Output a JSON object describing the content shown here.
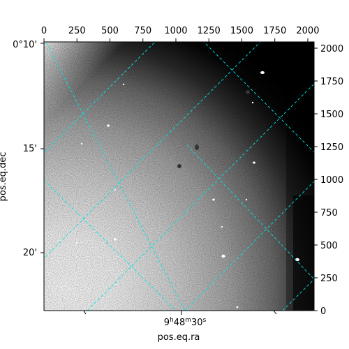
{
  "chart_data": {
    "type": "image",
    "colormap": "gray",
    "grid_color": "#00e5e5",
    "pixel_axes": {
      "x_range": [
        0,
        2048
      ],
      "y_range": [
        0,
        2048
      ],
      "x_ticks": [
        0,
        250,
        500,
        750,
        1000,
        1250,
        1500,
        1750,
        2000
      ],
      "y_ticks": [
        0,
        250,
        500,
        750,
        1000,
        1250,
        1500,
        1750,
        2000
      ]
    },
    "world_axes": {
      "xlabel": "pos.eq.ra",
      "ylabel": "pos.eq.dec",
      "ra_ticks": [
        {
          "h": "9",
          "m": "48",
          "s": "30"
        }
      ],
      "dec_ticks": [
        {
          "label": "0°10'"
        },
        {
          "label": "15'"
        },
        {
          "label": "20'"
        }
      ]
    }
  }
}
